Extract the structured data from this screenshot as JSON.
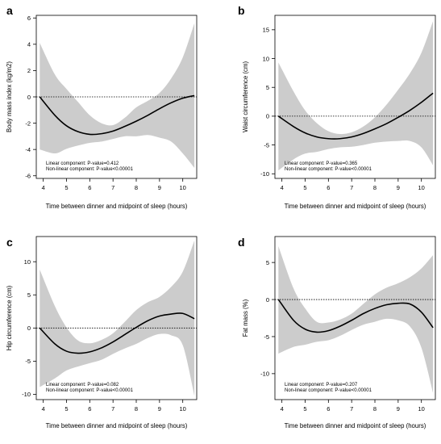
{
  "chart_data": [
    {
      "type": "line",
      "panel_label": "a",
      "xlabel": "Time between dinner and midpoint of sleep (hours)",
      "ylabel": "Body mass index (kg/m2)",
      "xlim": [
        3.7,
        10.6
      ],
      "ylim": [
        -6.2,
        6.2
      ],
      "xticks": [
        4,
        5,
        6,
        7,
        8,
        9,
        10
      ],
      "yticks": [
        -6,
        -4,
        -2,
        0,
        2,
        4,
        6
      ],
      "reference_line_y": 0,
      "annotations": [
        "Linear component: P-value=0.412",
        "Non-linear component: P-value<0.00001"
      ],
      "x": [
        3.85,
        4.5,
        5.0,
        5.5,
        6.0,
        6.5,
        7.0,
        7.5,
        8.0,
        8.5,
        9.0,
        9.5,
        10.0,
        10.5
      ],
      "y": [
        0.0,
        -1.4,
        -2.2,
        -2.65,
        -2.85,
        -2.8,
        -2.6,
        -2.25,
        -1.85,
        -1.4,
        -0.9,
        -0.45,
        -0.1,
        0.1
      ],
      "ci_upper": [
        4.1,
        1.7,
        0.6,
        -0.4,
        -1.4,
        -2.0,
        -2.15,
        -1.6,
        -0.8,
        -0.3,
        0.3,
        1.4,
        3.0,
        5.6
      ],
      "ci_lower": [
        -4.0,
        -4.3,
        -3.95,
        -3.7,
        -3.5,
        -3.4,
        -3.2,
        -3.0,
        -3.0,
        -2.9,
        -3.1,
        -3.4,
        -4.3,
        -5.4
      ]
    },
    {
      "type": "line",
      "panel_label": "b",
      "xlabel": "Time between dinner and midpoint of sleep (hours)",
      "ylabel": "Waist circumference (cm)",
      "xlim": [
        3.7,
        10.6
      ],
      "ylim": [
        -10.8,
        17.5
      ],
      "xticks": [
        4,
        5,
        6,
        7,
        8,
        9,
        10
      ],
      "yticks": [
        -10,
        -5,
        0,
        5,
        10,
        15
      ],
      "reference_line_y": 0,
      "annotations": [
        "Linear component: P-value=0.365",
        "Non-linear component: P-value<0.00001"
      ],
      "x": [
        3.85,
        4.5,
        5.0,
        5.5,
        6.0,
        6.5,
        7.0,
        7.5,
        8.0,
        8.5,
        9.0,
        9.5,
        10.0,
        10.5
      ],
      "y": [
        0.0,
        -1.8,
        -2.9,
        -3.6,
        -3.9,
        -3.9,
        -3.6,
        -3.0,
        -2.2,
        -1.3,
        -0.2,
        1.0,
        2.4,
        4.0
      ],
      "ci_upper": [
        9.3,
        4.3,
        1.0,
        -1.2,
        -2.6,
        -3.1,
        -2.8,
        -1.8,
        -0.2,
        2.0,
        4.6,
        7.4,
        11.0,
        16.5
      ],
      "ci_lower": [
        -9.4,
        -7.5,
        -6.5,
        -6.2,
        -5.7,
        -5.4,
        -5.3,
        -5.0,
        -4.6,
        -4.4,
        -4.3,
        -4.3,
        -5.4,
        -8.5
      ]
    },
    {
      "type": "line",
      "panel_label": "c",
      "xlabel": "Time between dinner and midpoint of sleep (hours)",
      "ylabel": "Hip circumference (cm)",
      "xlim": [
        3.7,
        10.6
      ],
      "ylim": [
        -10.8,
        13.8
      ],
      "xticks": [
        4,
        5,
        6,
        7,
        8,
        9,
        10
      ],
      "yticks": [
        -10,
        -5,
        0,
        5,
        10
      ],
      "reference_line_y": 0,
      "annotations": [
        "Linear component: P-value=0.082",
        "Non-linear component: P-value<0.00001"
      ],
      "x": [
        3.85,
        4.5,
        5.0,
        5.5,
        6.0,
        6.5,
        7.0,
        7.5,
        8.0,
        8.5,
        9.0,
        9.5,
        10.0,
        10.5
      ],
      "y": [
        0.0,
        -2.4,
        -3.5,
        -3.8,
        -3.6,
        -3.0,
        -2.1,
        -1.0,
        0.1,
        1.1,
        1.8,
        2.1,
        2.2,
        1.4
      ],
      "ci_upper": [
        8.8,
        3.3,
        0.1,
        -1.9,
        -2.3,
        -1.8,
        -0.8,
        0.9,
        2.7,
        3.9,
        4.7,
        6.2,
        8.5,
        13.2
      ],
      "ci_lower": [
        -8.9,
        -7.6,
        -6.4,
        -5.8,
        -5.3,
        -4.8,
        -3.9,
        -3.1,
        -2.4,
        -1.5,
        -0.9,
        -1.1,
        -2.6,
        -10.2
      ]
    },
    {
      "type": "line",
      "panel_label": "d",
      "xlabel": "Time between dinner and midpoint of sleep (hours)",
      "ylabel": "Fat mass (%)",
      "xlim": [
        3.7,
        10.6
      ],
      "ylim": [
        -13.5,
        8.5
      ],
      "xticks": [
        4,
        5,
        6,
        7,
        8,
        9,
        10
      ],
      "yticks": [
        -10,
        -5,
        0,
        5
      ],
      "reference_line_y": 0,
      "annotations": [
        "Linear component: P-value=0.207",
        "Non-linear component: P-value<0.00001"
      ],
      "x": [
        3.85,
        4.5,
        5.0,
        5.5,
        6.0,
        6.5,
        7.0,
        7.5,
        8.0,
        8.5,
        9.0,
        9.5,
        10.0,
        10.5
      ],
      "y": [
        0.0,
        -2.8,
        -4.0,
        -4.4,
        -4.2,
        -3.6,
        -2.8,
        -1.9,
        -1.2,
        -0.7,
        -0.5,
        -0.6,
        -1.7,
        -3.8
      ],
      "ci_upper": [
        7.2,
        1.5,
        -1.2,
        -3.0,
        -3.1,
        -2.7,
        -1.9,
        -0.6,
        0.7,
        1.6,
        2.2,
        3.0,
        4.2,
        6.0
      ],
      "ci_lower": [
        -7.3,
        -6.4,
        -6.1,
        -5.7,
        -5.5,
        -4.9,
        -4.1,
        -3.4,
        -3.0,
        -2.6,
        -2.8,
        -3.6,
        -6.5,
        -12.6
      ]
    }
  ]
}
